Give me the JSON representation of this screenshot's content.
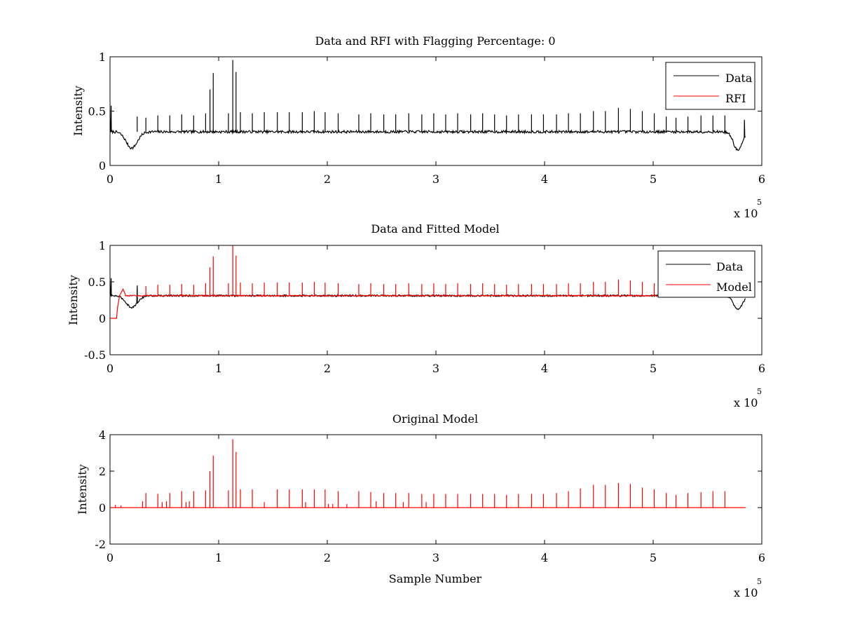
{
  "chart_data": [
    {
      "type": "line",
      "title": "Data and RFI with Flagging Percentage: 0",
      "xlabel": "",
      "ylabel": "Intensity",
      "xlim": [
        0,
        600000
      ],
      "ylim": [
        0,
        1
      ],
      "xticks": [
        0,
        1,
        2,
        3,
        4,
        5,
        6
      ],
      "xtick_scale": "x 10",
      "xtick_exponent": "5",
      "yticks": [
        "0",
        "0.5",
        "1"
      ],
      "ytick_values": [
        0,
        0.5,
        1
      ],
      "legend": {
        "placement": "top-right",
        "entries": [
          "Data",
          "RFI"
        ]
      },
      "series": [
        {
          "name": "Data",
          "color": "#000000",
          "baseline": 0.31,
          "x_end": 585000,
          "dips": [
            {
              "x": 20000,
              "y": 0.16,
              "w": 9000
            },
            {
              "x": 578000,
              "y": 0.14,
              "w": 7000
            }
          ],
          "edges": [
            {
              "x": 1000,
              "y": 0.55
            },
            {
              "x": 584000,
              "y": 0.42
            }
          ],
          "spikes": [
            {
              "x": 25000,
              "y": 0.45
            },
            {
              "x": 33000,
              "y": 0.44
            },
            {
              "x": 44000,
              "y": 0.46
            },
            {
              "x": 55000,
              "y": 0.46
            },
            {
              "x": 66000,
              "y": 0.47
            },
            {
              "x": 77000,
              "y": 0.46
            },
            {
              "x": 88000,
              "y": 0.48
            },
            {
              "x": 92000,
              "y": 0.7
            },
            {
              "x": 95000,
              "y": 0.85
            },
            {
              "x": 109000,
              "y": 0.48
            },
            {
              "x": 113000,
              "y": 0.97
            },
            {
              "x": 116000,
              "y": 0.86
            },
            {
              "x": 120000,
              "y": 0.49
            },
            {
              "x": 131000,
              "y": 0.48
            },
            {
              "x": 142000,
              "y": 0.49
            },
            {
              "x": 154000,
              "y": 0.49
            },
            {
              "x": 165000,
              "y": 0.49
            },
            {
              "x": 177000,
              "y": 0.49
            },
            {
              "x": 188000,
              "y": 0.5
            },
            {
              "x": 198000,
              "y": 0.49
            },
            {
              "x": 210000,
              "y": 0.48
            },
            {
              "x": 229000,
              "y": 0.47
            },
            {
              "x": 240000,
              "y": 0.48
            },
            {
              "x": 252000,
              "y": 0.47
            },
            {
              "x": 263000,
              "y": 0.47
            },
            {
              "x": 275000,
              "y": 0.48
            },
            {
              "x": 287000,
              "y": 0.47
            },
            {
              "x": 298000,
              "y": 0.48
            },
            {
              "x": 309000,
              "y": 0.47
            },
            {
              "x": 320000,
              "y": 0.48
            },
            {
              "x": 332000,
              "y": 0.47
            },
            {
              "x": 343000,
              "y": 0.48
            },
            {
              "x": 354000,
              "y": 0.47
            },
            {
              "x": 365000,
              "y": 0.46
            },
            {
              "x": 376000,
              "y": 0.47
            },
            {
              "x": 388000,
              "y": 0.47
            },
            {
              "x": 399000,
              "y": 0.47
            },
            {
              "x": 411000,
              "y": 0.47
            },
            {
              "x": 422000,
              "y": 0.48
            },
            {
              "x": 433000,
              "y": 0.48
            },
            {
              "x": 445000,
              "y": 0.5
            },
            {
              "x": 456000,
              "y": 0.5
            },
            {
              "x": 468000,
              "y": 0.53
            },
            {
              "x": 479000,
              "y": 0.52
            },
            {
              "x": 490000,
              "y": 0.5
            },
            {
              "x": 501000,
              "y": 0.48
            },
            {
              "x": 512000,
              "y": 0.45
            },
            {
              "x": 521000,
              "y": 0.44
            },
            {
              "x": 532000,
              "y": 0.45
            },
            {
              "x": 544000,
              "y": 0.46
            },
            {
              "x": 555000,
              "y": 0.46
            },
            {
              "x": 566000,
              "y": 0.46
            }
          ]
        },
        {
          "name": "RFI",
          "color": "#ff0000",
          "points": []
        }
      ]
    },
    {
      "type": "line",
      "title": "Data and Fitted Model",
      "xlabel": "",
      "ylabel": "Intensity",
      "xlim": [
        0,
        600000
      ],
      "ylim": [
        -0.5,
        1
      ],
      "xticks": [
        0,
        1,
        2,
        3,
        4,
        5,
        6
      ],
      "xtick_scale": "x 10",
      "xtick_exponent": "5",
      "yticks": [
        "-0.5",
        "0",
        "0.5",
        "1"
      ],
      "ytick_values": [
        -0.5,
        0,
        0.5,
        1
      ],
      "legend": {
        "placement": "top-right",
        "entries": [
          "Data",
          "Model"
        ]
      },
      "series": [
        {
          "name": "Data",
          "color": "#000000",
          "baseline": 0.31,
          "x_end": 585000,
          "dips": [
            {
              "x": 20000,
              "y": 0.15,
              "w": 9000
            },
            {
              "x": 578000,
              "y": 0.12,
              "w": 7000
            }
          ],
          "edges": [
            {
              "x": 1000,
              "y": 0.55
            },
            {
              "x": 25000,
              "y": 0.45
            }
          ]
        },
        {
          "name": "Model",
          "color": "#ff0000",
          "baseline": 0.31,
          "x_start": 0,
          "x_end": 550000,
          "ramp": [
            {
              "x": 0,
              "y": 0.0
            },
            {
              "x": 6000,
              "y": 0.0
            },
            {
              "x": 7000,
              "y": 0.16
            },
            {
              "x": 9000,
              "y": 0.32
            },
            {
              "x": 12000,
              "y": 0.4
            },
            {
              "x": 14000,
              "y": 0.33
            }
          ],
          "spikes": [
            {
              "x": 33000,
              "y": 0.44
            },
            {
              "x": 44000,
              "y": 0.46
            },
            {
              "x": 55000,
              "y": 0.46
            },
            {
              "x": 66000,
              "y": 0.47
            },
            {
              "x": 77000,
              "y": 0.46
            },
            {
              "x": 88000,
              "y": 0.48
            },
            {
              "x": 92000,
              "y": 0.7
            },
            {
              "x": 95000,
              "y": 0.85
            },
            {
              "x": 109000,
              "y": 0.48
            },
            {
              "x": 113000,
              "y": 1.0
            },
            {
              "x": 116000,
              "y": 0.86
            },
            {
              "x": 120000,
              "y": 0.49
            },
            {
              "x": 131000,
              "y": 0.48
            },
            {
              "x": 142000,
              "y": 0.49
            },
            {
              "x": 154000,
              "y": 0.49
            },
            {
              "x": 165000,
              "y": 0.49
            },
            {
              "x": 177000,
              "y": 0.49
            },
            {
              "x": 188000,
              "y": 0.5
            },
            {
              "x": 198000,
              "y": 0.49
            },
            {
              "x": 210000,
              "y": 0.48
            },
            {
              "x": 229000,
              "y": 0.47
            },
            {
              "x": 240000,
              "y": 0.48
            },
            {
              "x": 252000,
              "y": 0.47
            },
            {
              "x": 263000,
              "y": 0.47
            },
            {
              "x": 275000,
              "y": 0.48
            },
            {
              "x": 287000,
              "y": 0.47
            },
            {
              "x": 298000,
              "y": 0.48
            },
            {
              "x": 309000,
              "y": 0.47
            },
            {
              "x": 320000,
              "y": 0.48
            },
            {
              "x": 332000,
              "y": 0.47
            },
            {
              "x": 343000,
              "y": 0.48
            },
            {
              "x": 354000,
              "y": 0.47
            },
            {
              "x": 365000,
              "y": 0.46
            },
            {
              "x": 376000,
              "y": 0.47
            },
            {
              "x": 388000,
              "y": 0.47
            },
            {
              "x": 399000,
              "y": 0.47
            },
            {
              "x": 411000,
              "y": 0.47
            },
            {
              "x": 422000,
              "y": 0.48
            },
            {
              "x": 433000,
              "y": 0.48
            },
            {
              "x": 445000,
              "y": 0.5
            },
            {
              "x": 456000,
              "y": 0.5
            },
            {
              "x": 468000,
              "y": 0.53
            },
            {
              "x": 479000,
              "y": 0.52
            },
            {
              "x": 490000,
              "y": 0.5
            },
            {
              "x": 501000,
              "y": 0.48
            },
            {
              "x": 512000,
              "y": 0.45
            },
            {
              "x": 521000,
              "y": 0.44
            },
            {
              "x": 532000,
              "y": 0.45
            },
            {
              "x": 544000,
              "y": 0.46
            }
          ]
        }
      ]
    },
    {
      "type": "line",
      "title": "Original Model",
      "xlabel": "Sample Number",
      "ylabel": "Intensity",
      "xlim": [
        0,
        600000
      ],
      "ylim": [
        -2,
        4
      ],
      "xticks": [
        0,
        1,
        2,
        3,
        4,
        5,
        6
      ],
      "xtick_scale": "x 10",
      "xtick_exponent": "5",
      "yticks": [
        "-2",
        "0",
        "2",
        "4"
      ],
      "ytick_values": [
        -2,
        0,
        2,
        4
      ],
      "series": [
        {
          "name": "",
          "color": "#ff0000",
          "baseline": 0.0,
          "x_start": 0,
          "x_end": 585000,
          "spikes": [
            {
              "x": 5000,
              "y": 0.15
            },
            {
              "x": 10000,
              "y": 0.12
            },
            {
              "x": 30000,
              "y": 0.35
            },
            {
              "x": 33000,
              "y": 0.8
            },
            {
              "x": 44000,
              "y": 0.75
            },
            {
              "x": 48000,
              "y": 0.3
            },
            {
              "x": 52000,
              "y": 0.35
            },
            {
              "x": 55000,
              "y": 0.8
            },
            {
              "x": 66000,
              "y": 0.9
            },
            {
              "x": 70000,
              "y": 0.3
            },
            {
              "x": 73000,
              "y": 0.35
            },
            {
              "x": 77000,
              "y": 0.9
            },
            {
              "x": 88000,
              "y": 0.95
            },
            {
              "x": 92000,
              "y": 2.0
            },
            {
              "x": 95000,
              "y": 2.85
            },
            {
              "x": 109000,
              "y": 0.95
            },
            {
              "x": 113000,
              "y": 3.75
            },
            {
              "x": 116000,
              "y": 3.05
            },
            {
              "x": 120000,
              "y": 1.0
            },
            {
              "x": 131000,
              "y": 1.0
            },
            {
              "x": 142000,
              "y": 0.3
            },
            {
              "x": 154000,
              "y": 1.0
            },
            {
              "x": 165000,
              "y": 1.0
            },
            {
              "x": 177000,
              "y": 1.0
            },
            {
              "x": 180000,
              "y": 0.3
            },
            {
              "x": 188000,
              "y": 1.0
            },
            {
              "x": 198000,
              "y": 1.0
            },
            {
              "x": 201000,
              "y": 0.2
            },
            {
              "x": 205000,
              "y": 0.2
            },
            {
              "x": 210000,
              "y": 0.9
            },
            {
              "x": 218000,
              "y": 0.2
            },
            {
              "x": 229000,
              "y": 0.9
            },
            {
              "x": 240000,
              "y": 0.85
            },
            {
              "x": 245000,
              "y": 0.35
            },
            {
              "x": 252000,
              "y": 0.8
            },
            {
              "x": 263000,
              "y": 0.8
            },
            {
              "x": 270000,
              "y": 0.3
            },
            {
              "x": 275000,
              "y": 0.8
            },
            {
              "x": 287000,
              "y": 0.75
            },
            {
              "x": 291000,
              "y": 0.3
            },
            {
              "x": 298000,
              "y": 0.75
            },
            {
              "x": 309000,
              "y": 0.75
            },
            {
              "x": 320000,
              "y": 0.75
            },
            {
              "x": 332000,
              "y": 0.75
            },
            {
              "x": 343000,
              "y": 0.75
            },
            {
              "x": 354000,
              "y": 0.75
            },
            {
              "x": 365000,
              "y": 0.7
            },
            {
              "x": 376000,
              "y": 0.75
            },
            {
              "x": 388000,
              "y": 0.75
            },
            {
              "x": 399000,
              "y": 0.75
            },
            {
              "x": 411000,
              "y": 0.8
            },
            {
              "x": 422000,
              "y": 0.9
            },
            {
              "x": 433000,
              "y": 1.05
            },
            {
              "x": 445000,
              "y": 1.25
            },
            {
              "x": 456000,
              "y": 1.25
            },
            {
              "x": 468000,
              "y": 1.35
            },
            {
              "x": 479000,
              "y": 1.3
            },
            {
              "x": 490000,
              "y": 1.1
            },
            {
              "x": 501000,
              "y": 1.0
            },
            {
              "x": 512000,
              "y": 0.8
            },
            {
              "x": 521000,
              "y": 0.7
            },
            {
              "x": 532000,
              "y": 0.8
            },
            {
              "x": 544000,
              "y": 0.85
            },
            {
              "x": 555000,
              "y": 0.9
            },
            {
              "x": 566000,
              "y": 0.9
            }
          ]
        }
      ]
    }
  ]
}
